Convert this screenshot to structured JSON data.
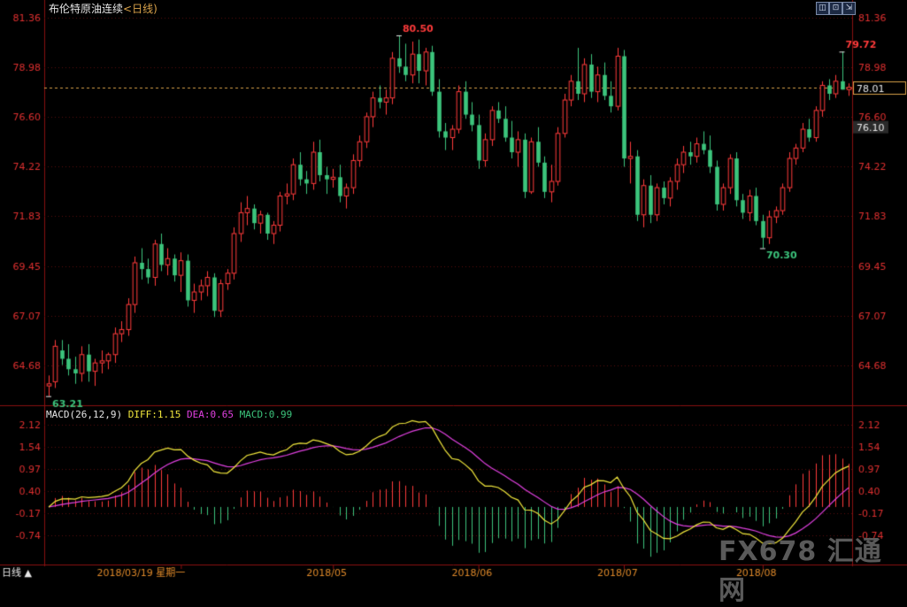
{
  "title": {
    "name": "布伦特原油连续",
    "timeframe": "<日线)"
  },
  "window_buttons": {
    "b1": "◫",
    "b2": "⊡",
    "b3": "⇲"
  },
  "watermark": "FX678 汇通网",
  "bottom_left_label": "日线 ▲",
  "colors": {
    "up": "#ff3b3b",
    "down": "#3cc47c",
    "diff": "#f0e63c",
    "dea": "#e040e0",
    "price_line": "#d9a24a"
  },
  "chart_data": [
    {
      "type": "candlestick",
      "title": "布伦特原油连续<日线)",
      "price_axis_ticks": [
        81.36,
        78.98,
        76.6,
        74.22,
        71.83,
        69.45,
        67.07,
        64.68
      ],
      "ylim": [
        62.9,
        81.6
      ],
      "current_price": 78.01,
      "marked_price": 76.1,
      "annotations": [
        {
          "label": "80.50",
          "value": 80.5,
          "type": "high"
        },
        {
          "label": "79.72",
          "value": 79.72,
          "type": "high"
        },
        {
          "label": "70.30",
          "value": 70.3,
          "type": "low"
        },
        {
          "label": "63.21",
          "value": 63.21,
          "type": "low"
        }
      ],
      "x_labels": [
        "2018/03/19 星期一",
        "2018/05",
        "2018/06",
        "2018/07",
        "2018/08"
      ],
      "candles": [
        [
          63.7,
          64.2,
          63.21,
          63.8
        ],
        [
          63.9,
          65.9,
          63.6,
          65.6
        ],
        [
          65.4,
          65.9,
          64.7,
          65.0
        ],
        [
          65.0,
          65.7,
          64.2,
          64.5
        ],
        [
          64.5,
          65.1,
          63.8,
          64.3
        ],
        [
          64.3,
          65.6,
          63.9,
          65.2
        ],
        [
          65.2,
          65.7,
          63.9,
          64.4
        ],
        [
          64.4,
          65.0,
          63.7,
          64.8
        ],
        [
          64.8,
          65.4,
          64.3,
          64.9
        ],
        [
          64.9,
          65.3,
          64.5,
          65.2
        ],
        [
          65.2,
          66.5,
          64.8,
          66.2
        ],
        [
          66.2,
          66.8,
          65.8,
          66.4
        ],
        [
          66.4,
          67.9,
          66.1,
          67.6
        ],
        [
          67.6,
          69.9,
          67.2,
          69.6
        ],
        [
          69.6,
          70.3,
          68.8,
          69.3
        ],
        [
          69.3,
          69.8,
          68.6,
          68.9
        ],
        [
          68.9,
          70.7,
          68.5,
          70.5
        ],
        [
          70.5,
          71.0,
          69.2,
          69.5
        ],
        [
          69.5,
          70.3,
          69.0,
          69.8
        ],
        [
          69.8,
          70.0,
          68.7,
          69.0
        ],
        [
          69.0,
          70.1,
          68.2,
          69.7
        ],
        [
          69.7,
          70.0,
          67.5,
          67.8
        ],
        [
          67.8,
          68.6,
          67.2,
          68.2
        ],
        [
          68.2,
          68.8,
          67.8,
          68.5
        ],
        [
          68.5,
          69.2,
          68.0,
          68.9
        ],
        [
          68.9,
          69.1,
          67.0,
          67.3
        ],
        [
          67.3,
          68.8,
          67.0,
          68.6
        ],
        [
          68.6,
          69.3,
          68.3,
          69.1
        ],
        [
          69.1,
          71.3,
          68.8,
          71.0
        ],
        [
          71.0,
          72.5,
          70.6,
          72.0
        ],
        [
          72.0,
          72.8,
          71.4,
          72.2
        ],
        [
          72.2,
          72.4,
          71.2,
          71.5
        ],
        [
          71.5,
          72.1,
          71.0,
          71.9
        ],
        [
          71.9,
          72.0,
          70.7,
          71.0
        ],
        [
          71.0,
          71.6,
          70.5,
          71.4
        ],
        [
          71.4,
          73.0,
          71.1,
          72.8
        ],
        [
          72.8,
          73.4,
          72.4,
          72.9
        ],
        [
          72.9,
          74.6,
          72.6,
          74.3
        ],
        [
          74.3,
          74.9,
          73.3,
          73.6
        ],
        [
          73.6,
          74.0,
          72.9,
          73.4
        ],
        [
          73.4,
          75.4,
          73.1,
          74.9
        ],
        [
          74.9,
          75.5,
          73.5,
          73.8
        ],
        [
          73.8,
          74.2,
          72.9,
          73.6
        ],
        [
          73.6,
          74.1,
          73.2,
          73.7
        ],
        [
          73.7,
          74.3,
          72.5,
          72.8
        ],
        [
          72.8,
          73.4,
          72.2,
          73.2
        ],
        [
          73.2,
          74.8,
          72.9,
          74.5
        ],
        [
          74.5,
          75.7,
          74.2,
          75.4
        ],
        [
          75.4,
          76.8,
          75.1,
          76.6
        ],
        [
          76.6,
          77.8,
          76.1,
          77.5
        ],
        [
          77.5,
          78.1,
          77.0,
          77.3
        ],
        [
          77.3,
          77.9,
          76.7,
          77.5
        ],
        [
          77.5,
          79.7,
          77.2,
          79.4
        ],
        [
          79.4,
          80.5,
          78.7,
          79.0
        ],
        [
          79.0,
          80.1,
          78.3,
          78.6
        ],
        [
          78.6,
          80.2,
          78.2,
          79.6
        ],
        [
          79.6,
          80.3,
          78.2,
          78.8
        ],
        [
          78.8,
          79.9,
          78.1,
          79.7
        ],
        [
          79.7,
          80.0,
          77.6,
          77.8
        ],
        [
          77.8,
          78.4,
          75.6,
          75.9
        ],
        [
          75.9,
          76.3,
          75.0,
          75.6
        ],
        [
          75.6,
          76.2,
          75.0,
          76.0
        ],
        [
          76.0,
          78.1,
          75.8,
          77.8
        ],
        [
          77.8,
          78.3,
          76.5,
          76.7
        ],
        [
          76.7,
          77.3,
          75.9,
          76.2
        ],
        [
          76.2,
          76.7,
          74.1,
          74.5
        ],
        [
          74.5,
          75.8,
          74.2,
          75.5
        ],
        [
          75.5,
          77.1,
          75.2,
          76.9
        ],
        [
          76.9,
          77.3,
          76.3,
          76.5
        ],
        [
          76.5,
          77.1,
          75.4,
          75.6
        ],
        [
          75.6,
          76.4,
          74.6,
          74.9
        ],
        [
          74.9,
          75.9,
          74.2,
          75.5
        ],
        [
          75.5,
          75.8,
          72.7,
          73.0
        ],
        [
          73.0,
          75.6,
          72.9,
          75.4
        ],
        [
          75.4,
          76.1,
          74.2,
          74.4
        ],
        [
          74.4,
          74.7,
          72.7,
          73.0
        ],
        [
          73.0,
          74.3,
          72.5,
          73.5
        ],
        [
          73.5,
          76.1,
          73.3,
          75.8
        ],
        [
          75.8,
          77.7,
          75.6,
          77.4
        ],
        [
          77.4,
          78.6,
          77.1,
          78.3
        ],
        [
          78.3,
          79.9,
          77.4,
          77.7
        ],
        [
          77.7,
          79.4,
          77.3,
          79.1
        ],
        [
          79.1,
          79.6,
          77.5,
          77.8
        ],
        [
          77.8,
          79.0,
          77.3,
          78.6
        ],
        [
          78.6,
          79.2,
          77.4,
          77.6
        ],
        [
          77.6,
          78.3,
          76.8,
          77.1
        ],
        [
          77.1,
          79.9,
          76.9,
          79.5
        ],
        [
          79.5,
          79.8,
          74.2,
          74.6
        ],
        [
          74.6,
          75.4,
          73.4,
          74.7
        ],
        [
          74.7,
          75.0,
          71.6,
          71.9
        ],
        [
          71.9,
          73.6,
          71.3,
          73.3
        ],
        [
          73.3,
          73.8,
          71.5,
          71.9
        ],
        [
          71.9,
          73.4,
          71.6,
          73.2
        ],
        [
          73.2,
          73.5,
          72.4,
          72.7
        ],
        [
          72.7,
          73.7,
          72.3,
          73.5
        ],
        [
          73.5,
          74.6,
          73.1,
          74.3
        ],
        [
          74.3,
          75.2,
          73.9,
          74.9
        ],
        [
          74.9,
          75.4,
          74.3,
          74.7
        ],
        [
          74.7,
          75.6,
          74.4,
          75.3
        ],
        [
          75.3,
          75.9,
          74.8,
          75.0
        ],
        [
          75.0,
          75.7,
          73.9,
          74.2
        ],
        [
          74.2,
          74.5,
          72.1,
          72.4
        ],
        [
          72.4,
          73.4,
          72.1,
          73.2
        ],
        [
          73.2,
          74.8,
          72.9,
          74.6
        ],
        [
          74.6,
          74.9,
          72.3,
          72.6
        ],
        [
          72.6,
          72.9,
          71.7,
          72.0
        ],
        [
          72.0,
          73.1,
          71.6,
          72.8
        ],
        [
          72.8,
          73.2,
          71.4,
          71.6
        ],
        [
          71.6,
          71.9,
          70.3,
          70.8
        ],
        [
          70.8,
          72.1,
          70.5,
          71.8
        ],
        [
          71.8,
          72.3,
          71.5,
          72.1
        ],
        [
          72.1,
          73.4,
          71.9,
          73.2
        ],
        [
          73.2,
          74.9,
          73.0,
          74.6
        ],
        [
          74.6,
          75.3,
          74.3,
          75.1
        ],
        [
          75.1,
          76.3,
          74.9,
          76.0
        ],
        [
          76.0,
          76.5,
          75.4,
          75.6
        ],
        [
          75.6,
          77.1,
          75.4,
          76.9
        ],
        [
          76.9,
          78.3,
          76.6,
          78.1
        ],
        [
          78.1,
          78.4,
          77.4,
          77.7
        ],
        [
          77.7,
          78.6,
          77.5,
          78.3
        ],
        [
          78.3,
          79.72,
          77.9,
          77.9
        ],
        [
          77.9,
          78.2,
          77.6,
          78.01
        ]
      ]
    },
    {
      "type": "macd",
      "params": "MACD(26,12,9)",
      "diff_label": "DIFF:",
      "diff": 1.15,
      "dea_label": "DEA:",
      "dea": 0.65,
      "macd_label": "MACD:",
      "macd": 0.99,
      "axis_ticks": [
        2.12,
        1.54,
        0.97,
        0.4,
        -0.17,
        -0.74
      ],
      "ylim": [
        -1.3,
        2.3
      ]
    }
  ]
}
